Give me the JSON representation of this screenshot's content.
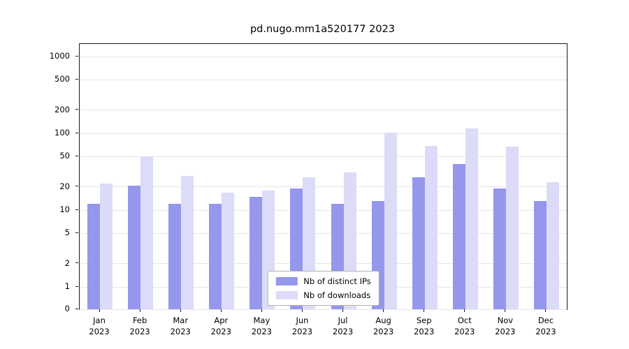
{
  "title": "pd.nugo.mm1a520177 2023",
  "chart_data": {
    "type": "bar",
    "title": "pd.nugo.mm1a520177 2023",
    "categories": [
      "Jan 2023",
      "Feb 2023",
      "Mar 2023",
      "Apr 2023",
      "May 2023",
      "Jun 2023",
      "Jul 2023",
      "Aug 2023",
      "Sep 2023",
      "Oct 2023",
      "Nov 2023",
      "Dec 2023"
    ],
    "series": [
      {
        "name": "Nb of distinct IPs",
        "color": "#9597ec",
        "values": [
          12,
          21,
          12,
          12,
          15,
          19,
          12,
          13,
          27,
          40,
          19,
          13
        ]
      },
      {
        "name": "Nb of downloads",
        "color": "#dcdcf8",
        "values": [
          22,
          50,
          28,
          17,
          18,
          27,
          31,
          102,
          68,
          115,
          67,
          23
        ]
      }
    ],
    "xlabel": "",
    "ylabel": "",
    "yscale": "symlog",
    "yticks": [
      0,
      1,
      2,
      5,
      10,
      20,
      50,
      100,
      200,
      500,
      1000
    ],
    "ylim": [
      0,
      1300
    ],
    "grid": true,
    "grid_color": "#e6e6e6",
    "legend_position": "lower center"
  }
}
